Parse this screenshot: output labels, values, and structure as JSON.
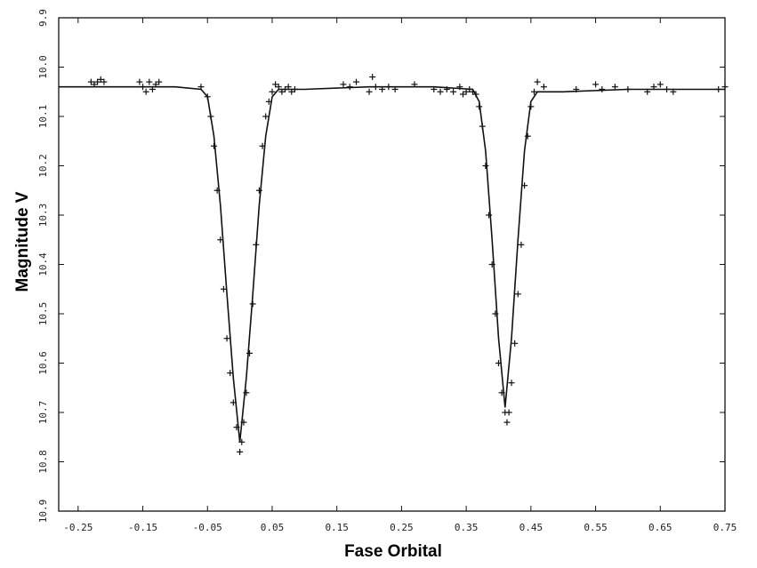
{
  "chart_data": {
    "type": "scatter",
    "title": "",
    "xlabel": "Fase Orbital",
    "ylabel": "Magnitude V",
    "xlim": [
      -0.28,
      0.75
    ],
    "ylim": [
      9.9,
      10.9
    ],
    "y_inverted": true,
    "grid": false,
    "marker": "+",
    "x_ticks": [
      "-0.25",
      "-0.15",
      "-0.05",
      "0.05",
      "0.15",
      "0.25",
      "0.35",
      "0.45",
      "0.55",
      "0.65",
      "0.75"
    ],
    "x_tick_values": [
      -0.25,
      -0.15,
      -0.05,
      0.05,
      0.15,
      0.25,
      0.35,
      0.45,
      0.55,
      0.65,
      0.75
    ],
    "y_ticks": [
      "9.9",
      "10.0",
      "10.1",
      "10.2",
      "10.3",
      "10.4",
      "10.5",
      "10.6",
      "10.7",
      "10.8",
      "10.9"
    ],
    "y_tick_values": [
      9.9,
      10.0,
      10.1,
      10.2,
      10.3,
      10.4,
      10.5,
      10.6,
      10.7,
      10.8,
      10.9
    ],
    "fit_curve": {
      "name": "",
      "x": [
        -0.28,
        -0.2,
        -0.1,
        -0.06,
        -0.05,
        -0.04,
        -0.03,
        -0.02,
        -0.01,
        0.0,
        0.01,
        0.02,
        0.03,
        0.04,
        0.05,
        0.06,
        0.1,
        0.2,
        0.3,
        0.36,
        0.37,
        0.38,
        0.39,
        0.4,
        0.41,
        0.42,
        0.43,
        0.44,
        0.45,
        0.46,
        0.5,
        0.6,
        0.75
      ],
      "y": [
        10.04,
        10.04,
        10.04,
        10.045,
        10.06,
        10.14,
        10.28,
        10.46,
        10.63,
        10.76,
        10.63,
        10.46,
        10.28,
        10.14,
        10.06,
        10.045,
        10.045,
        10.04,
        10.04,
        10.045,
        10.07,
        10.17,
        10.35,
        10.55,
        10.69,
        10.55,
        10.35,
        10.17,
        10.07,
        10.05,
        10.05,
        10.045,
        10.045
      ]
    },
    "points": {
      "x": [
        -0.23,
        -0.225,
        -0.22,
        -0.215,
        -0.21,
        -0.155,
        -0.15,
        -0.145,
        -0.14,
        -0.135,
        -0.13,
        -0.125,
        -0.06,
        -0.05,
        -0.045,
        -0.04,
        -0.035,
        -0.03,
        -0.025,
        -0.02,
        -0.015,
        -0.01,
        -0.005,
        0.0,
        0.003,
        0.006,
        0.01,
        0.015,
        0.02,
        0.025,
        0.03,
        0.035,
        0.04,
        0.045,
        0.05,
        0.055,
        0.06,
        0.065,
        0.07,
        0.075,
        0.08,
        0.085,
        0.16,
        0.17,
        0.18,
        0.2,
        0.205,
        0.21,
        0.22,
        0.23,
        0.24,
        0.27,
        0.3,
        0.31,
        0.32,
        0.33,
        0.34,
        0.345,
        0.35,
        0.355,
        0.36,
        0.365,
        0.37,
        0.375,
        0.38,
        0.385,
        0.39,
        0.395,
        0.4,
        0.405,
        0.41,
        0.413,
        0.416,
        0.42,
        0.425,
        0.43,
        0.435,
        0.44,
        0.445,
        0.45,
        0.455,
        0.46,
        0.47,
        0.52,
        0.55,
        0.56,
        0.58,
        0.6,
        0.63,
        0.64,
        0.65,
        0.66,
        0.67,
        0.74,
        0.75
      ],
      "y": [
        10.03,
        10.035,
        10.03,
        10.025,
        10.03,
        10.03,
        10.04,
        10.05,
        10.03,
        10.045,
        10.035,
        10.03,
        10.04,
        10.06,
        10.1,
        10.16,
        10.25,
        10.35,
        10.45,
        10.55,
        10.62,
        10.68,
        10.73,
        10.78,
        10.76,
        10.72,
        10.66,
        10.58,
        10.48,
        10.36,
        10.25,
        10.16,
        10.1,
        10.07,
        10.05,
        10.035,
        10.04,
        10.05,
        10.045,
        10.04,
        10.05,
        10.045,
        10.035,
        10.04,
        10.03,
        10.05,
        10.02,
        10.04,
        10.045,
        10.04,
        10.045,
        10.035,
        10.045,
        10.05,
        10.045,
        10.05,
        10.04,
        10.055,
        10.05,
        10.045,
        10.05,
        10.055,
        10.08,
        10.12,
        10.2,
        10.3,
        10.4,
        10.5,
        10.6,
        10.66,
        10.7,
        10.72,
        10.7,
        10.64,
        10.56,
        10.46,
        10.36,
        10.24,
        10.14,
        10.08,
        10.05,
        10.03,
        10.04,
        10.045,
        10.035,
        10.045,
        10.04,
        10.045,
        10.05,
        10.04,
        10.035,
        10.045,
        10.05,
        10.045,
        10.04
      ]
    }
  }
}
